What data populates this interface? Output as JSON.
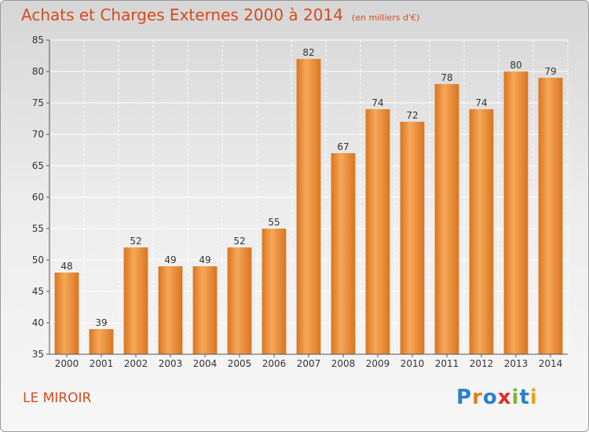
{
  "title": "Achats et Charges Externes 2000 à 2014",
  "unit_note": "(en milliers d'€)",
  "commune": "LE MIROIR",
  "logo": {
    "text": "Proxiti",
    "letter_colors": [
      "#2a7fd0",
      "#e67e22",
      "#2a7fd0",
      "#e02b2b",
      "#7cb82f",
      "#2a7fd0",
      "#e6a320"
    ]
  },
  "colors": {
    "title": "#d64a1e",
    "bar_light": "#f6a85a",
    "bar_dark": "#d97520",
    "grid": "#ffffff",
    "axis_text": "#333333"
  },
  "chart_data": {
    "type": "bar",
    "categories": [
      "2000",
      "2001",
      "2002",
      "2003",
      "2004",
      "2005",
      "2006",
      "2007",
      "2008",
      "2009",
      "2010",
      "2011",
      "2012",
      "2013",
      "2014"
    ],
    "values": [
      48,
      39,
      52,
      49,
      49,
      52,
      55,
      82,
      67,
      74,
      72,
      78,
      74,
      80,
      79
    ],
    "ylim": [
      35,
      85
    ],
    "yticks": [
      35,
      40,
      45,
      50,
      55,
      60,
      65,
      70,
      75,
      80,
      85
    ],
    "grid": true,
    "data_labels": true
  }
}
